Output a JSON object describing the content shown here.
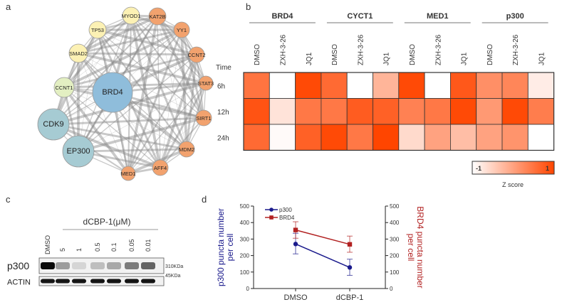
{
  "panels": {
    "a": "a",
    "b": "b",
    "c": "c",
    "d": "d"
  },
  "network": {
    "nodes": [
      {
        "id": "MYOD1",
        "group": "yellow"
      },
      {
        "id": "KAT2B",
        "group": "orange"
      },
      {
        "id": "TP53",
        "group": "yellow"
      },
      {
        "id": "YY1",
        "group": "orange"
      },
      {
        "id": "SMAD2",
        "group": "yellow"
      },
      {
        "id": "CCNT2",
        "group": "orange"
      },
      {
        "id": "CCNT1",
        "group": "green"
      },
      {
        "id": "STAT3",
        "group": "orange"
      },
      {
        "id": "BRD4",
        "group": "blue"
      },
      {
        "id": "SIRT1",
        "group": "orange"
      },
      {
        "id": "CDK9",
        "group": "teal"
      },
      {
        "id": "MDM2",
        "group": "orange"
      },
      {
        "id": "EP300",
        "group": "teal"
      },
      {
        "id": "AFF4",
        "group": "orange"
      },
      {
        "id": "MED1",
        "group": "orange"
      }
    ],
    "colors": {
      "yellow": "#fcf1b4",
      "orange": "#f2a26e",
      "green": "#e3efc2",
      "blue": "#8fbddb",
      "teal": "#a6cbd3",
      "edge": "#888888"
    }
  },
  "heatmap": {
    "type": "heatmap",
    "groups": [
      "BRD4",
      "CYCT1",
      "MED1",
      "p300"
    ],
    "conditions": [
      "DMSO",
      "ZXH-3-26",
      "JQ1"
    ],
    "row_header": "Time",
    "rows": [
      "6h",
      "12h",
      "24h"
    ],
    "values": [
      [
        0.5,
        -1,
        0.95,
        0.6,
        -1,
        -0.2,
        0.95,
        -1,
        0.8,
        0.2,
        0.3,
        -0.8
      ],
      [
        0.85,
        -0.7,
        0.45,
        0.45,
        0.75,
        0.7,
        0.35,
        0.45,
        0.95,
        0.1,
        0.95,
        0.4
      ],
      [
        0.6,
        -0.95,
        0.7,
        0.95,
        0.45,
        1.0,
        -0.6,
        0.0,
        -0.3,
        0.0,
        0.15,
        -1
      ]
    ],
    "scale": {
      "min_label": "-1",
      "max_label": "1",
      "title": "Z score",
      "low_color": "#ffffff",
      "high_color": "#ff4500"
    }
  },
  "blot": {
    "treatment": "dCBP-1(μM)",
    "lanes": [
      "DMSO",
      "5",
      "1",
      "0.5",
      "0.1",
      "0.05",
      "0.01"
    ],
    "rows": [
      {
        "label": "p300",
        "marker": "310KDa",
        "intensity": [
          1.0,
          0.35,
          0.1,
          0.2,
          0.3,
          0.5,
          0.6
        ]
      },
      {
        "label": "ACTIN",
        "marker": "45KDa",
        "intensity": [
          0.95,
          0.95,
          0.95,
          0.95,
          0.95,
          0.95,
          0.95
        ]
      }
    ]
  },
  "chart_data": {
    "type": "line",
    "categories": [
      "DMSO",
      "dCBP-1"
    ],
    "ylabel_left": "p300 puncta number per cell",
    "ylabel_right": "BRD4 puncta number per cell",
    "ylim": [
      0,
      500
    ],
    "yticks": [
      "0",
      "100",
      "200",
      "300",
      "400",
      "500"
    ],
    "series": [
      {
        "name": "p300",
        "axis": "left",
        "color": "#1a1a8c",
        "values": [
          270,
          128
        ],
        "err_low": [
          210,
          80
        ],
        "err_high": [
          335,
          178
        ]
      },
      {
        "name": "BRD4",
        "axis": "right",
        "color": "#b22222",
        "values": [
          355,
          268
        ],
        "err_low": [
          305,
          220
        ],
        "err_high": [
          405,
          318
        ]
      }
    ],
    "legend": "top-left"
  }
}
